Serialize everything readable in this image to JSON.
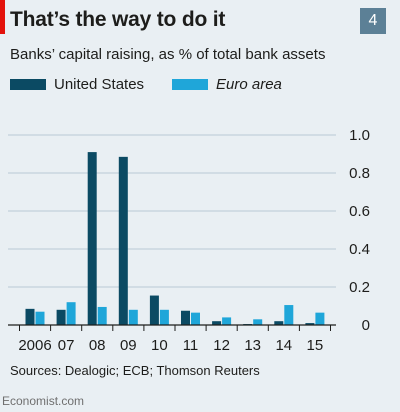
{
  "header": {
    "title": "That’s the way to do it",
    "badge": "4"
  },
  "colors": {
    "accent_red": "#e3120b",
    "badge_bg": "#5c8096"
  },
  "chart_data": {
    "type": "bar",
    "title": "That’s the way to do it",
    "subtitle": "Banks’ capital raising, as % of total bank assets",
    "xlabel": "",
    "ylabel": "",
    "categories": [
      "2006",
      "07",
      "08",
      "09",
      "10",
      "11",
      "12",
      "13",
      "14",
      "15"
    ],
    "series": [
      {
        "name": "United States",
        "color": "#0b4a63",
        "values": [
          0.085,
          0.08,
          0.91,
          0.885,
          0.155,
          0.075,
          0.02,
          0.005,
          0.02,
          0.01
        ]
      },
      {
        "name": "Euro area",
        "color": "#1fa6d9",
        "values": [
          0.07,
          0.12,
          0.095,
          0.08,
          0.08,
          0.065,
          0.04,
          0.03,
          0.105,
          0.065
        ]
      }
    ],
    "ylim": [
      0,
      1.0
    ],
    "yticks": [
      0,
      0.2,
      0.4,
      0.6,
      0.8,
      1.0
    ],
    "ytick_labels": [
      "0",
      "0.2",
      "0.4",
      "0.6",
      "0.8",
      "1.0"
    ],
    "grid": true,
    "legend_position": "top-left",
    "axis_side": "right"
  },
  "footer": {
    "source": "Sources: Dealogic; ECB; Thomson Reuters",
    "credit": "Economist.com"
  }
}
